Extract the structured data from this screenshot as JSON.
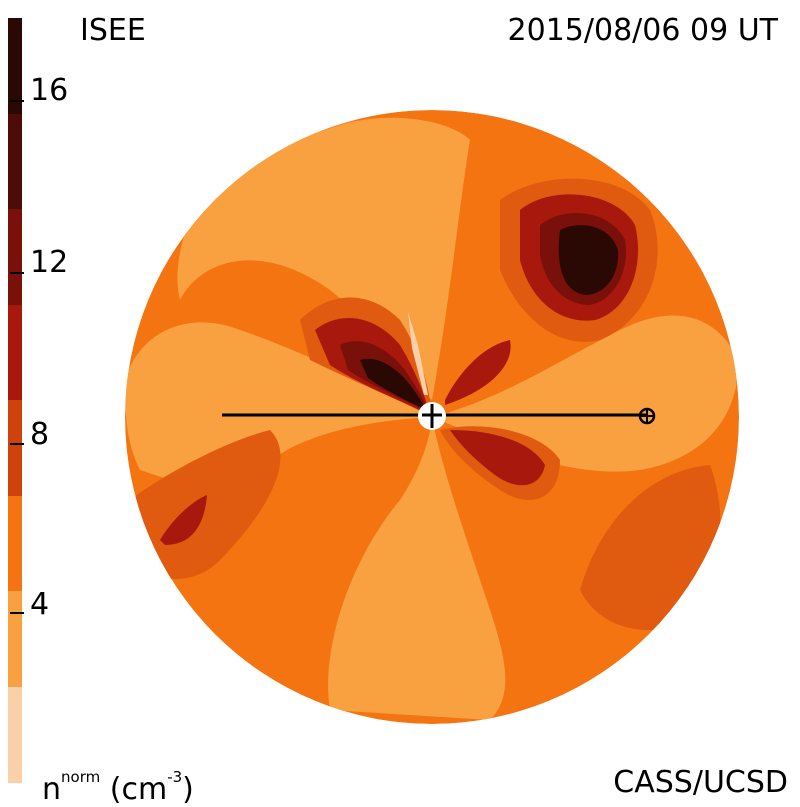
{
  "header": {
    "left": "ISEE",
    "right": "2015/08/06 09 UT"
  },
  "footer": {
    "left_base": "n",
    "left_sup": "norm",
    "left_unit": "(cm",
    "left_unit_sup": "-3",
    "left_close": ")",
    "right": "CASS/UCSD"
  },
  "colorbar": {
    "ticks": [
      "16",
      "12",
      "8",
      "4"
    ],
    "levels": [
      {
        "color": "#2a0804"
      },
      {
        "color": "#4e0c08"
      },
      {
        "color": "#7a100a"
      },
      {
        "color": "#a8180c"
      },
      {
        "color": "#d0420c"
      },
      {
        "color": "#f47412"
      },
      {
        "color": "#f9a040"
      },
      {
        "color": "#fad0a8"
      }
    ]
  },
  "colors": {
    "base": "#f9a040",
    "band": "#f47412",
    "mid": "#e05a10",
    "dark": "#a8180c",
    "darker": "#7a100a",
    "darkest": "#2a0804",
    "light": "#fad0a8",
    "line": "#000000"
  },
  "map": {
    "sun_icon": "sun-icon",
    "earth_icon": "earth-icon"
  }
}
